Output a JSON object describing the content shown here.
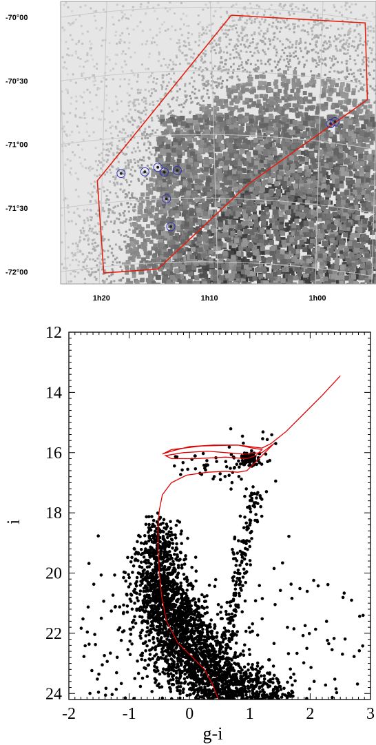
{
  "chart_data": [
    {
      "type": "scatter",
      "panel": "sky-map",
      "title": "",
      "xlabel": "",
      "ylabel": "",
      "ra_tick_labels": [
        "1h20",
        "1h10",
        "1h00"
      ],
      "ra_tick_values_deg": [
        20.0,
        17.5,
        15.0
      ],
      "dec_tick_labels": [
        "-70°00",
        "-70°30",
        "-71°00",
        "-71°30",
        "-72°00"
      ],
      "dec_tick_values_deg": [
        -70.0,
        -70.5,
        -71.0,
        -71.5,
        -72.0
      ],
      "xlim_ra_deg": [
        21.0,
        13.7
      ],
      "ylim_dec_deg": [
        -72.12,
        -69.9
      ],
      "grid": true,
      "density_description_colors": {
        "background": "#dcdcdc",
        "dense": "#707070",
        "outline": "#e02010",
        "circles": "#3030c0"
      },
      "selection_polygon": {
        "name": "",
        "vertices_ra_dec": [
          [
            17.05,
            -70.06
          ],
          [
            13.95,
            -70.02
          ],
          [
            13.9,
            -70.62
          ],
          [
            16.65,
            -71.38
          ],
          [
            18.75,
            -72.05
          ],
          [
            20.0,
            -72.05
          ],
          [
            20.15,
            -71.32
          ],
          [
            17.05,
            -70.06
          ]
        ]
      },
      "clusters_ra_dec": [
        [
          19.05,
          -71.28
        ],
        [
          18.6,
          -71.29
        ],
        [
          18.3,
          -71.28
        ],
        [
          18.75,
          -71.25
        ],
        [
          18.55,
          -71.5
        ],
        [
          18.45,
          -71.72
        ],
        [
          19.6,
          -71.28
        ],
        [
          14.75,
          -70.85
        ],
        [
          14.65,
          -70.83
        ]
      ]
    },
    {
      "type": "scatter",
      "panel": "color-magnitude-diagram",
      "title": "",
      "xlabel": "g-i",
      "ylabel": "i",
      "xlim": [
        -2,
        3
      ],
      "ylim": [
        24.2,
        12
      ],
      "x_ticks": [
        -2,
        -1,
        0,
        1,
        2,
        3
      ],
      "y_ticks": [
        12,
        14,
        16,
        18,
        20,
        22,
        24
      ],
      "x_tick_labels": [
        "-2",
        "-1",
        "0",
        "1",
        "2",
        "3"
      ],
      "y_tick_labels": [
        "12",
        "14",
        "16",
        "18",
        "20",
        "22",
        "24"
      ],
      "grid": false,
      "point_color": "#000000",
      "isochrone": {
        "name": "",
        "color": "#e00000",
        "points": [
          [
            0.48,
            24.2
          ],
          [
            0.38,
            23.7
          ],
          [
            0.25,
            23.2
          ],
          [
            0.05,
            22.8
          ],
          [
            -0.2,
            22.3
          ],
          [
            -0.38,
            21.6
          ],
          [
            -0.46,
            20.8
          ],
          [
            -0.5,
            20.0
          ],
          [
            -0.52,
            19.2
          ],
          [
            -0.52,
            18.4
          ],
          [
            -0.5,
            17.9
          ],
          [
            -0.45,
            17.4
          ],
          [
            -0.3,
            17.0
          ],
          [
            -0.05,
            16.75
          ],
          [
            0.3,
            16.65
          ],
          [
            0.6,
            16.62
          ],
          [
            0.8,
            16.65
          ],
          [
            0.95,
            16.6
          ],
          [
            1.1,
            16.3
          ],
          [
            1.25,
            16.0
          ],
          [
            1.4,
            15.7
          ],
          [
            1.2,
            16.0
          ],
          [
            0.9,
            16.05
          ],
          [
            0.6,
            16.0
          ],
          [
            0.3,
            15.95
          ],
          [
            -0.1,
            16.0
          ],
          [
            -0.4,
            16.1
          ],
          [
            -0.3,
            16.2
          ],
          [
            0.1,
            16.2
          ],
          [
            0.6,
            16.15
          ],
          [
            0.95,
            16.2
          ],
          [
            1.1,
            16.1
          ],
          [
            1.2,
            15.9
          ],
          [
            1.05,
            15.85
          ],
          [
            0.8,
            15.75
          ],
          [
            0.4,
            15.75
          ],
          [
            0.0,
            15.8
          ],
          [
            -0.3,
            15.95
          ],
          [
            -0.45,
            16.05
          ],
          [
            -0.3,
            15.9
          ],
          [
            0.2,
            15.78
          ],
          [
            0.8,
            15.75
          ],
          [
            1.2,
            15.85
          ],
          [
            1.35,
            15.7
          ],
          [
            1.6,
            15.3
          ],
          [
            1.9,
            14.7
          ],
          [
            2.2,
            14.1
          ],
          [
            2.5,
            13.45
          ]
        ]
      }
    }
  ]
}
